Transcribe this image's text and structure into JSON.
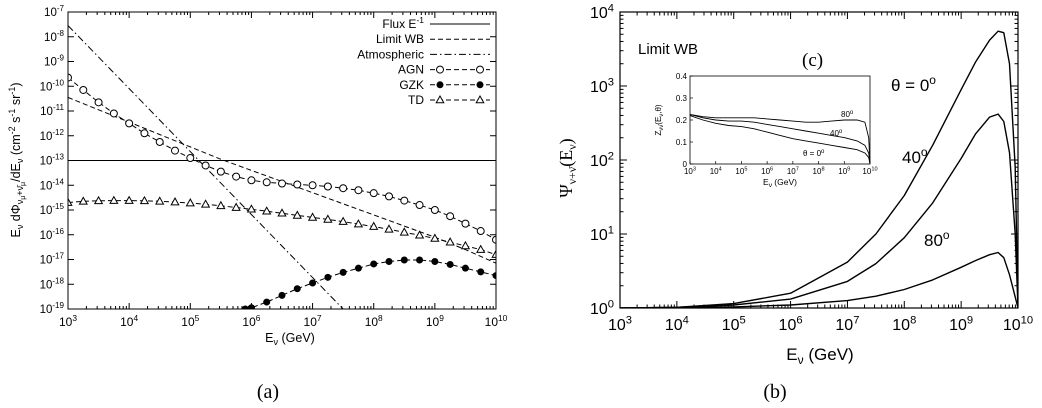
{
  "chart_data": [
    {
      "panel_label": "(a)",
      "type": "line",
      "xlabel_base": "E",
      "xlabel_sub": "ν",
      "xlabel_tail": " (GeV)",
      "ylabel_parts": [
        "E",
        "ν",
        " dΦ",
        "ν",
        "μ",
        "+ν̄",
        "μ",
        "/dE",
        "ν",
        " (cm",
        "-2",
        " s",
        "-1",
        " sr",
        "-1",
        ")"
      ],
      "xscale": "log",
      "yscale": "log",
      "xlim_exp": [
        3,
        10
      ],
      "ylim_exp": [
        -19,
        -7
      ],
      "x_tick_base": "10",
      "x_tick_exps": [
        "3",
        "4",
        "5",
        "6",
        "7",
        "8",
        "9",
        "10"
      ],
      "y_tick_base": "10",
      "y_tick_exps": [
        "-19",
        "-18",
        "-17",
        "-16",
        "-15",
        "-14",
        "-13",
        "-12",
        "-11",
        "-10",
        "-9",
        "-8",
        "-7"
      ],
      "legend_position": "top-right",
      "series": [
        {
          "name": "Flux E",
          "name_sup": "-1",
          "style": "solid",
          "marker": "none",
          "x_exp": [
            3,
            10
          ],
          "y_exp": [
            -13,
            -13
          ]
        },
        {
          "name": "Limit WB",
          "style": "dashed",
          "marker": "none",
          "x_exp": [
            3,
            3.5,
            4,
            4.5,
            5,
            5.5,
            6,
            6.5,
            7,
            7.5,
            8,
            8.5,
            9,
            9.5,
            10
          ],
          "y_exp": [
            -10.45,
            -10.95,
            -11.45,
            -11.95,
            -12.45,
            -12.95,
            -13.4,
            -13.85,
            -14.3,
            -14.75,
            -15.2,
            -15.65,
            -16.1,
            -16.6,
            -17.15
          ]
        },
        {
          "name": "Atmospheric",
          "style": "dashdot",
          "marker": "none",
          "x_exp": [
            3,
            7.5
          ],
          "y_exp": [
            -7.55,
            -19.0
          ]
        },
        {
          "name": "AGN",
          "style": "dashed",
          "marker": "open-circle",
          "x_exp": [
            3,
            3.25,
            3.5,
            3.75,
            4,
            4.25,
            4.5,
            4.75,
            5,
            5.25,
            5.5,
            5.75,
            6,
            6.25,
            6.5,
            6.75,
            7,
            7.25,
            7.5,
            7.75,
            8,
            8.25,
            8.5,
            8.75,
            9,
            9.25,
            9.5,
            9.75,
            10
          ],
          "y_exp": [
            -9.65,
            -10.15,
            -10.65,
            -11.1,
            -11.5,
            -11.9,
            -12.25,
            -12.6,
            -12.9,
            -13.2,
            -13.45,
            -13.65,
            -13.8,
            -13.88,
            -13.93,
            -13.97,
            -14.0,
            -14.05,
            -14.12,
            -14.2,
            -14.32,
            -14.45,
            -14.62,
            -14.8,
            -15.0,
            -15.25,
            -15.55,
            -15.85,
            -16.2
          ]
        },
        {
          "name": "GZK",
          "style": "dashed",
          "marker": "filled-circle",
          "x_exp": [
            5.9,
            6.0,
            6.25,
            6.5,
            6.75,
            7.0,
            7.25,
            7.5,
            7.75,
            8.0,
            8.25,
            8.5,
            8.75,
            9.0,
            9.25,
            9.5,
            9.75,
            10
          ],
          "y_exp": [
            -19.0,
            -18.95,
            -18.72,
            -18.45,
            -18.18,
            -17.95,
            -17.72,
            -17.52,
            -17.35,
            -17.18,
            -17.08,
            -17.02,
            -17.02,
            -17.08,
            -17.2,
            -17.35,
            -17.5,
            -17.65
          ]
        },
        {
          "name": "TD",
          "style": "dashed",
          "marker": "open-triangle",
          "x_exp": [
            3,
            3.25,
            3.5,
            3.75,
            4,
            4.25,
            4.5,
            4.75,
            5,
            5.25,
            5.5,
            5.75,
            6,
            6.25,
            6.5,
            6.75,
            7,
            7.25,
            7.5,
            7.75,
            8,
            8.25,
            8.5,
            8.75,
            9,
            9.25,
            9.5,
            9.75,
            10
          ],
          "y_exp": [
            -14.7,
            -14.65,
            -14.63,
            -14.62,
            -14.62,
            -14.63,
            -14.65,
            -14.68,
            -14.72,
            -14.77,
            -14.83,
            -14.9,
            -14.97,
            -15.05,
            -15.13,
            -15.22,
            -15.3,
            -15.38,
            -15.47,
            -15.57,
            -15.67,
            -15.78,
            -15.9,
            -16.02,
            -16.15,
            -16.3,
            -16.45,
            -16.6,
            -16.8
          ]
        }
      ]
    },
    {
      "panel_label": "(b)",
      "type": "line",
      "xlabel_base": "E",
      "xlabel_sub": "ν",
      "xlabel_tail": " (GeV)",
      "ylabel_base": "Ψ",
      "ylabel_sub": "ν+ν̄",
      "ylabel_tail": "(E",
      "ylabel_tail_sub": "ν",
      "ylabel_close": ")",
      "xscale": "log",
      "yscale": "log",
      "xlim_exp": [
        3,
        10
      ],
      "ylim_exp": [
        0,
        4
      ],
      "x_tick_base": "10",
      "x_tick_exps": [
        "3",
        "4",
        "5",
        "6",
        "7",
        "8",
        "9",
        "10"
      ],
      "y_tick_base": "10",
      "y_tick_exps": [
        "0",
        "1",
        "2",
        "3",
        "4"
      ],
      "annotations": {
        "limit": "Limit WB",
        "panel_tag": "(c)",
        "theta0": "θ = 0",
        "theta0_sup": "o",
        "a40": "40",
        "a40_sup": "o",
        "a80": "80",
        "a80_sup": "o"
      },
      "series": [
        {
          "label": "θ = 0°",
          "x_exp": [
            3,
            4,
            5,
            6,
            7,
            7.5,
            8,
            8.5,
            9,
            9.25,
            9.5,
            9.65,
            9.75,
            9.85,
            9.95,
            10
          ],
          "y_exp": [
            0,
            0.01,
            0.06,
            0.2,
            0.62,
            1.0,
            1.52,
            2.2,
            2.95,
            3.32,
            3.62,
            3.74,
            3.72,
            3.3,
            1.9,
            0
          ]
        },
        {
          "label": "θ = 40°",
          "x_exp": [
            3,
            4,
            5,
            6,
            7,
            7.5,
            8,
            8.5,
            9,
            9.25,
            9.5,
            9.65,
            9.75,
            9.85,
            9.95,
            10
          ],
          "y_exp": [
            0,
            0.01,
            0.04,
            0.12,
            0.36,
            0.6,
            0.95,
            1.42,
            2.02,
            2.35,
            2.58,
            2.62,
            2.52,
            2.1,
            1.0,
            0
          ]
        },
        {
          "label": "θ = 80°",
          "x_exp": [
            3,
            4,
            5,
            6,
            7,
            7.5,
            8,
            8.5,
            9,
            9.25,
            9.5,
            9.65,
            9.75,
            9.85,
            9.95,
            10
          ],
          "y_exp": [
            0,
            0.005,
            0.015,
            0.04,
            0.1,
            0.16,
            0.25,
            0.38,
            0.55,
            0.64,
            0.72,
            0.75,
            0.68,
            0.45,
            0.15,
            0
          ]
        }
      ],
      "inset": {
        "ylabel": "Z",
        "ylabel_sub": "νν̄",
        "ylabel_tail": "(E",
        "ylabel_tail_sub": "ν",
        "ylabel_close": ",θ)",
        "xlabel_base": "E",
        "xlabel_sub": "ν",
        "xlabel_tail": " (GeV)",
        "xlim_exp": [
          3,
          10
        ],
        "ylim": [
          0,
          0.4
        ],
        "x_tick_base": "10",
        "x_tick_exps": [
          "3",
          "4",
          "5",
          "6",
          "7",
          "8",
          "9",
          "10"
        ],
        "y_ticks": [
          "0",
          "0.1",
          "0.2",
          "0.3",
          "0.4"
        ],
        "labels": {
          "theta0": "θ = 0",
          "theta0_sup": "o",
          "a40": "40",
          "a40_sup": "o",
          "a80": "80",
          "a80_sup": "o"
        },
        "series": [
          {
            "label": "θ = 0°",
            "x_exp": [
              3,
              3.5,
              4,
              4.5,
              5,
              5.5,
              6,
              6.5,
              7,
              7.5,
              8,
              8.5,
              9,
              9.5,
              9.8,
              9.95,
              10
            ],
            "y": [
              0.22,
              0.2,
              0.185,
              0.175,
              0.17,
              0.16,
              0.145,
              0.13,
              0.115,
              0.105,
              0.095,
              0.085,
              0.075,
              0.065,
              0.05,
              0.03,
              0.0
            ]
          },
          {
            "label": "θ = 40°",
            "x_exp": [
              3,
              3.5,
              4,
              4.5,
              5,
              5.5,
              6,
              6.5,
              7,
              7.5,
              8,
              8.5,
              9,
              9.5,
              9.8,
              9.95,
              10
            ],
            "y": [
              0.225,
              0.21,
              0.2,
              0.195,
              0.195,
              0.19,
              0.18,
              0.17,
              0.16,
              0.15,
              0.14,
              0.13,
              0.12,
              0.105,
              0.085,
              0.05,
              0.0
            ]
          },
          {
            "label": "θ = 80°",
            "x_exp": [
              3,
              3.5,
              4,
              4.5,
              5,
              5.5,
              6,
              6.5,
              7,
              7.5,
              8,
              8.5,
              9,
              9.5,
              9.8,
              9.95,
              10
            ],
            "y": [
              0.225,
              0.215,
              0.21,
              0.21,
              0.21,
              0.21,
              0.205,
              0.2,
              0.195,
              0.19,
              0.19,
              0.195,
              0.2,
              0.2,
              0.19,
              0.12,
              0.0
            ]
          }
        ]
      }
    }
  ]
}
